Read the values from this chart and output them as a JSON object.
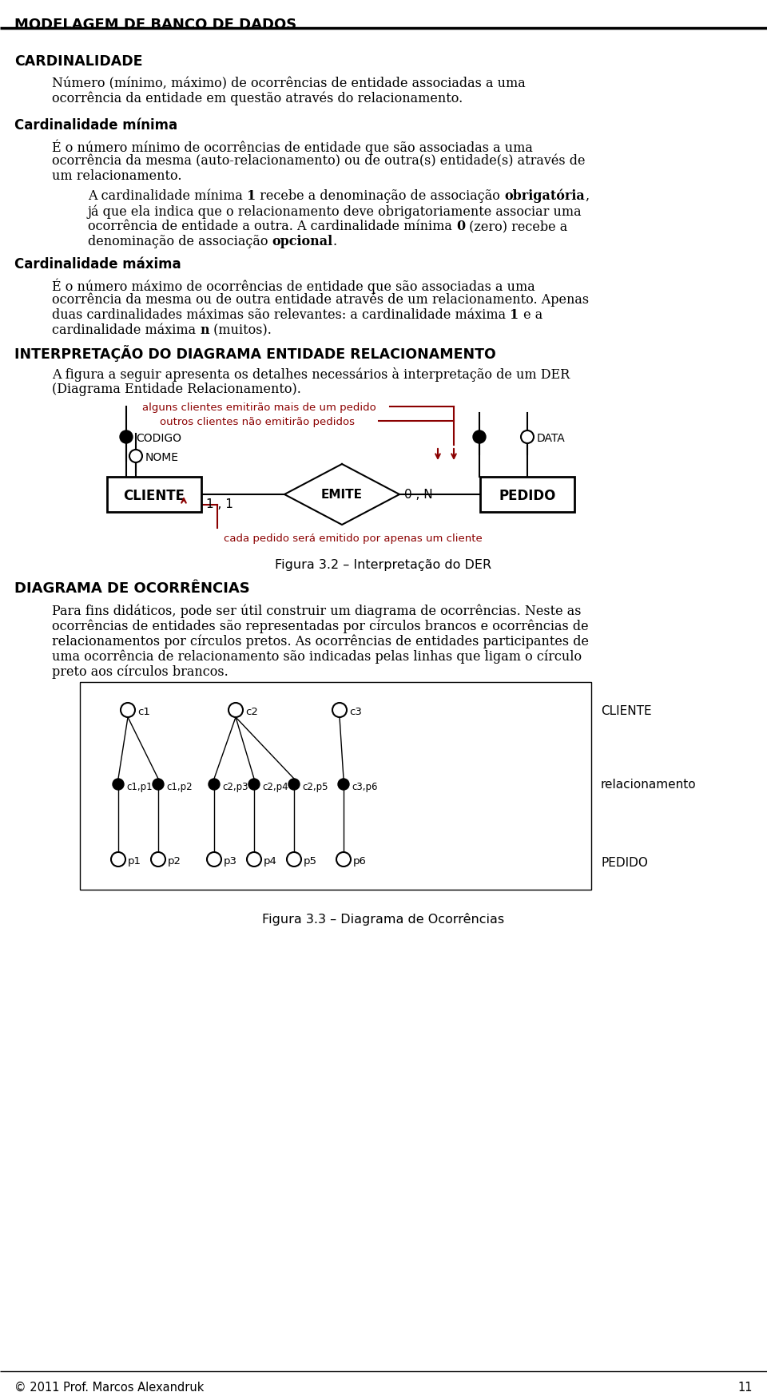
{
  "bg": "#ffffff",
  "red": "#8B0000",
  "page_title": "MODELAGEM DE BANCO DE DADOS",
  "page_num": "11",
  "footer": "© 2011 Prof. Marcos Alexandruk",
  "s1_head": "CARDINALIDADE",
  "s1_l1": "Número (mínimo, máximo) de ocorrências de entidade associadas a uma",
  "s1_l2": "ocorrência da entidade em questão através do relacionamento.",
  "s2_head": "Cardinalidade mínima",
  "s2_l1": "É o número mínimo de ocorrências de entidade que são associadas a uma",
  "s2_l2": "ocorrência da mesma (auto-relacionamento) ou de outra(s) entidade(s) através de",
  "s2_l3": "um relacionamento.",
  "s2_sub_l1_a": "A cardinalidade mínima ",
  "s2_sub_l1_b": "1",
  "s2_sub_l1_c": " recebe a denominação de associação ",
  "s2_sub_l1_d": "obrigatória",
  "s2_sub_l1_e": ",",
  "s2_sub_l2": "já que ela indica que o relacionamento deve obrigatoriamente associar uma",
  "s2_sub_l3_a": "ocorrência de entidade a outra. A cardinalidade mínima ",
  "s2_sub_l3_b": "0",
  "s2_sub_l3_c": " (zero) recebe a",
  "s2_sub_l4_a": "denominação de associação ",
  "s2_sub_l4_b": "opcional",
  "s2_sub_l4_c": ".",
  "s3_head": "Cardinalidade máxima",
  "s3_l1": "É o número máximo de ocorrências de entidade que são associadas a uma",
  "s3_l2": "ocorrência da mesma ou de outra entidade através de um relacionamento. Apenas",
  "s3_l3_a": "duas cardinalidades máximas são relevantes: a cardinalidade máxima ",
  "s3_l3_b": "1",
  "s3_l3_c": " e a",
  "s3_l4_a": "cardinalidade máxima ",
  "s3_l4_b": "n",
  "s3_l4_c": " (muitos).",
  "s4_head": "INTERPRETAÇÃO DO DIAGRAMA ENTIDADE RELACIONAMENTO",
  "s4_l1": "A figura a seguir apresenta os detalhes necessários à interpretação de um DER",
  "s4_l2": "(Diagrama Entidade Relacionamento).",
  "ann1": "alguns clientes emitirão mais de um pedido",
  "ann2": "outros clientes não emitirão pedidos",
  "ann3": "cada pedido será emitido por apenas um cliente",
  "fig32_cap": "Figura 3.2 – Interpretação do DER",
  "s5_head": "DIAGRAMA DE OCORRÊNCIAS",
  "s5_l1": "Para fins didáticos, pode ser útil construir um diagrama de ocorrências. Neste as",
  "s5_l2": "ocorrências de entidades são representadas por círculos brancos e ocorrências de",
  "s5_l3": "relacionamentos por círculos pretos. As ocorrências de entidades participantes de",
  "s5_l4": "uma ocorrência de relacionamento são indicadas pelas linhas que ligam o círculo",
  "s5_l5": "preto aos círculos brancos.",
  "fig33_cap": "Figura 3.3 – Diagrama de Ocorrências",
  "lbl_cliente": "CLIENTE",
  "lbl_pedido": "PEDIDO",
  "lbl_relac": "relacionamento",
  "lbl_emite": "EMITE",
  "lbl_codigo": "CODIGO",
  "lbl_nome": "NOME",
  "lbl_data": "DATA",
  "lbl_11": "1 , 1",
  "lbl_0n": "0 , N"
}
